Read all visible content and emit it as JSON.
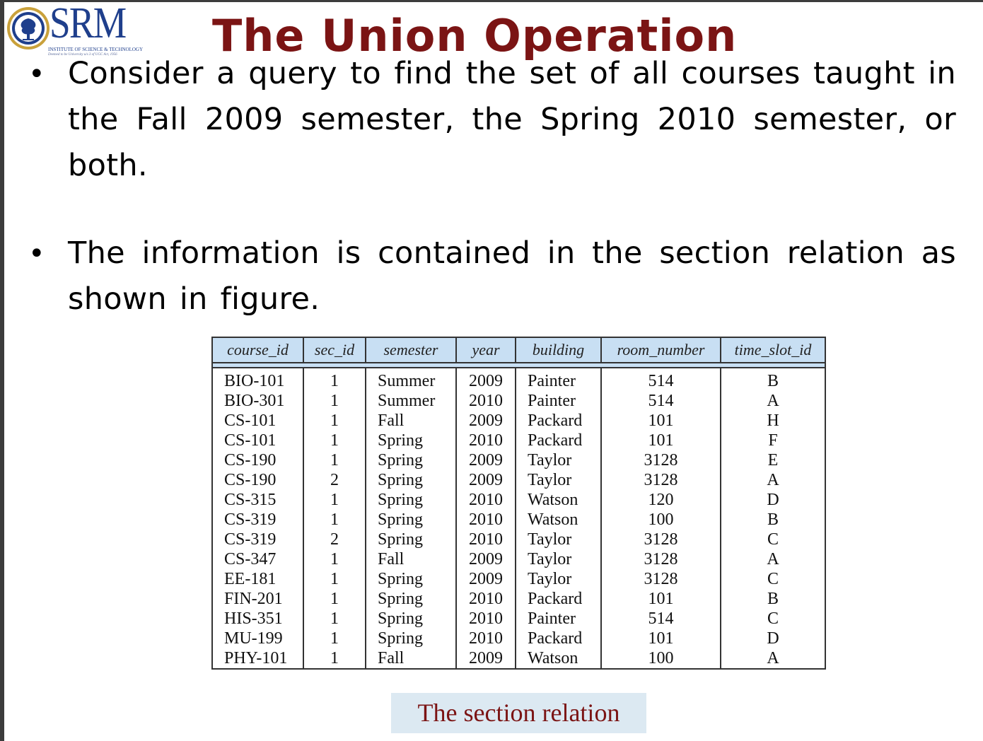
{
  "logo": {
    "word": "SRM",
    "subtitle": "INSTITUTE OF SCIENCE & TECHNOLOGY",
    "tagline": "Deemed to be University u/s 3 of UGC Act, 1956",
    "seal_icon": "srm-seal-icon",
    "colors": {
      "brand_blue": "#1f3f8c",
      "seal_gold": "#c9a13b"
    }
  },
  "title": "The Union Operation",
  "title_color": "#7b1414",
  "bullets": [
    {
      "text": "Consider a query to find the set of all courses taught in the Fall 2009 semester, the Spring 2010 semester, or both."
    },
    {
      "text": "The information is contained in the section relation as shown in figure."
    }
  ],
  "table": {
    "header_color": "#c8dff3",
    "columns": [
      "course_id",
      "sec_id",
      "semester",
      "year",
      "building",
      "room_number",
      "time_slot_id"
    ],
    "rows": [
      [
        "BIO-101",
        "1",
        "Summer",
        "2009",
        "Painter",
        "514",
        "B"
      ],
      [
        "BIO-301",
        "1",
        "Summer",
        "2010",
        "Painter",
        "514",
        "A"
      ],
      [
        "CS-101",
        "1",
        "Fall",
        "2009",
        "Packard",
        "101",
        "H"
      ],
      [
        "CS-101",
        "1",
        "Spring",
        "2010",
        "Packard",
        "101",
        "F"
      ],
      [
        "CS-190",
        "1",
        "Spring",
        "2009",
        "Taylor",
        "3128",
        "E"
      ],
      [
        "CS-190",
        "2",
        "Spring",
        "2009",
        "Taylor",
        "3128",
        "A"
      ],
      [
        "CS-315",
        "1",
        "Spring",
        "2010",
        "Watson",
        "120",
        "D"
      ],
      [
        "CS-319",
        "1",
        "Spring",
        "2010",
        "Watson",
        "100",
        "B"
      ],
      [
        "CS-319",
        "2",
        "Spring",
        "2010",
        "Taylor",
        "3128",
        "C"
      ],
      [
        "CS-347",
        "1",
        "Fall",
        "2009",
        "Taylor",
        "3128",
        "A"
      ],
      [
        "EE-181",
        "1",
        "Spring",
        "2009",
        "Taylor",
        "3128",
        "C"
      ],
      [
        "FIN-201",
        "1",
        "Spring",
        "2010",
        "Packard",
        "101",
        "B"
      ],
      [
        "HIS-351",
        "1",
        "Spring",
        "2010",
        "Painter",
        "514",
        "C"
      ],
      [
        "MU-199",
        "1",
        "Spring",
        "2010",
        "Packard",
        "101",
        "D"
      ],
      [
        "PHY-101",
        "1",
        "Fall",
        "2009",
        "Watson",
        "100",
        "A"
      ]
    ]
  },
  "caption": {
    "text": "The section relation",
    "background": "#dce9f2"
  }
}
